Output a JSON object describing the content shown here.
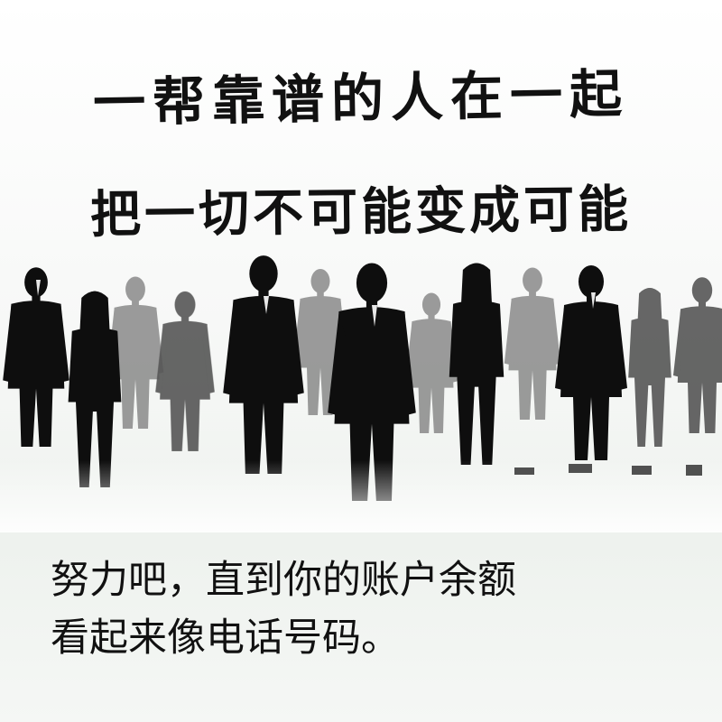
{
  "headline": {
    "line1": "一帮靠谱的人在一起",
    "line2": "把一切不可能变成可能"
  },
  "caption": {
    "line1": "努力吧，直到你的账户余额",
    "line2": "看起来像电话号码。"
  },
  "colors": {
    "text": "#111111",
    "silhouette_dark": "#0e0e0e",
    "silhouette_mid": "#555555",
    "silhouette_light": "#8a8a8a"
  }
}
